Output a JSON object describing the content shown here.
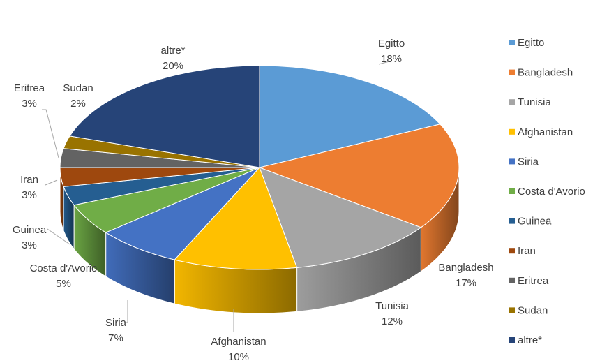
{
  "chart_data": {
    "type": "pie",
    "title": "",
    "categories": [
      "Egitto",
      "Bangladesh",
      "Tunisia",
      "Afghanistan",
      "Siria",
      "Costa d'Avorio",
      "Guinea",
      "Iran",
      "Eritrea",
      "Sudan",
      "altre*"
    ],
    "values": [
      18,
      17,
      12,
      10,
      7,
      5,
      3,
      3,
      3,
      2,
      20
    ],
    "value_labels": [
      "18%",
      "17%",
      "12%",
      "10%",
      "7%",
      "5%",
      "3%",
      "3%",
      "3%",
      "2%",
      "20%"
    ],
    "colors": [
      "#5b9bd5",
      "#ed7d31",
      "#a5a5a5",
      "#ffc000",
      "#4472c4",
      "#70ad47",
      "#255e91",
      "#9e480e",
      "#636363",
      "#997300",
      "#264478"
    ],
    "style": "3d-pie",
    "legend_position": "right"
  }
}
